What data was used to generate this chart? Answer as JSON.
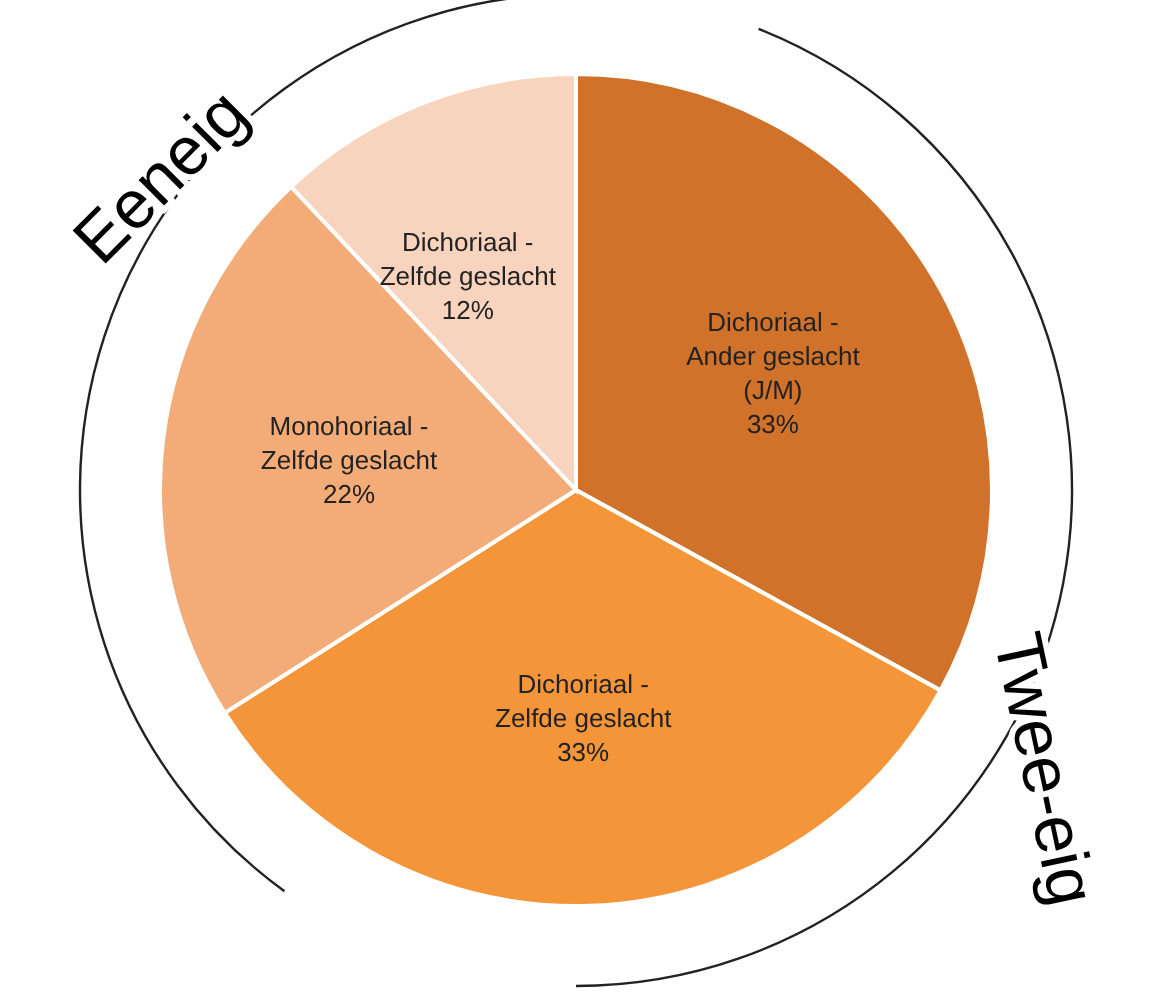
{
  "chart_data": {
    "type": "pie",
    "categories": [
      "Dichoriaal - Ander geslacht (J/M)",
      "Dichoriaal - Zelfde geslacht",
      "Monohoriaal - Zelfde geslacht",
      "Dichoriaal - Zelfde geslacht"
    ],
    "values": [
      33,
      33,
      22,
      12
    ],
    "colors": [
      "#d0722a",
      "#f5953a",
      "#f3ab78",
      "#f8d3bd"
    ],
    "value_labels": [
      "33%",
      "33%",
      "22%",
      "12%"
    ],
    "annotations": [
      "Eeneig",
      "Twee-eig"
    ]
  }
}
